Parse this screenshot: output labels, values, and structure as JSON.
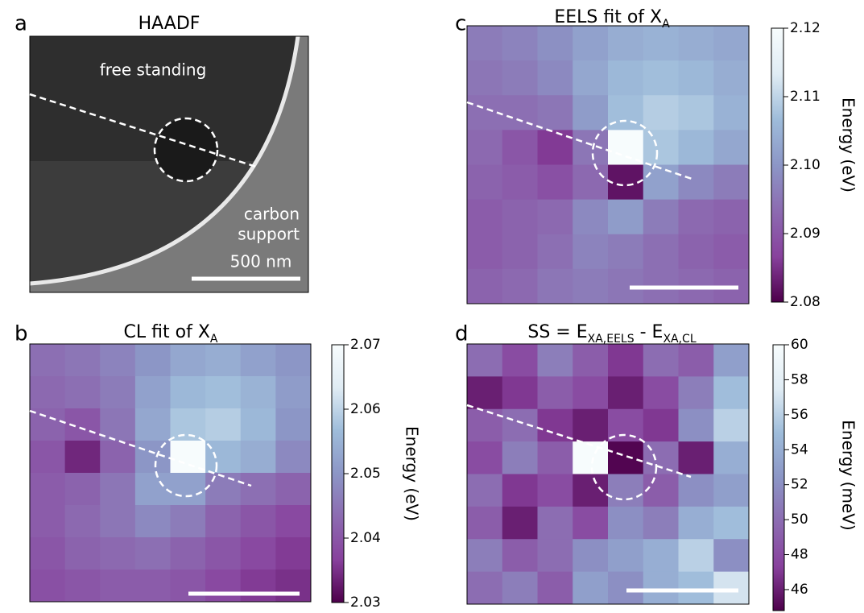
{
  "chart_data": [
    {
      "type": "image",
      "label": "a",
      "title": [
        "HAADF"
      ],
      "annotations": [
        "free standing",
        "carbon",
        "support"
      ],
      "scale_bar": "500 nm"
    },
    {
      "type": "heatmap",
      "label": "b",
      "title": [
        "CL fit of X",
        "A"
      ],
      "zlabel": "Energy (eV)",
      "zlim": [
        2.03,
        2.07
      ],
      "zticks": [
        2.03,
        2.04,
        2.05,
        2.06,
        2.07
      ],
      "colormap": [
        "#4d004b",
        "#88419d",
        "#8c6bb1",
        "#8c96c6",
        "#9ebcda",
        "#e0ecf4",
        "#f7fcfd"
      ],
      "z": [
        [
          2.044,
          2.045,
          2.047,
          2.05,
          2.053,
          2.054,
          2.052,
          2.05
        ],
        [
          2.043,
          2.044,
          2.046,
          2.052,
          2.056,
          2.057,
          2.055,
          2.051
        ],
        [
          2.042,
          2.04,
          2.045,
          2.053,
          2.058,
          2.059,
          2.056,
          2.05
        ],
        [
          2.04,
          2.034,
          2.042,
          2.05,
          2.07,
          2.056,
          2.054,
          2.048
        ],
        [
          2.041,
          2.042,
          2.045,
          2.052,
          2.052,
          2.046,
          2.044,
          2.042
        ],
        [
          2.041,
          2.043,
          2.045,
          2.048,
          2.046,
          2.042,
          2.04,
          2.038
        ],
        [
          2.04,
          2.042,
          2.043,
          2.044,
          2.042,
          2.04,
          2.038,
          2.036
        ],
        [
          2.039,
          2.04,
          2.041,
          2.041,
          2.04,
          2.038,
          2.036,
          2.035
        ]
      ]
    },
    {
      "type": "heatmap",
      "label": "c",
      "title": [
        "EELS fit of X",
        "A"
      ],
      "zlabel": "Energy (eV)",
      "zlim": [
        2.08,
        2.12
      ],
      "zticks": [
        {
          "value": 2.08,
          "label": "2.08"
        },
        2.09,
        {
          "value": 2.1,
          "label": "2.10"
        },
        2.11,
        2.12
      ],
      "colormap": [
        "#4d004b",
        "#88419d",
        "#8c6bb1",
        "#8c96c6",
        "#9ebcda",
        "#e0ecf4",
        "#f7fcfd"
      ],
      "z": [
        [
          2.096,
          2.097,
          2.099,
          2.102,
          2.104,
          2.105,
          2.104,
          2.103
        ],
        [
          2.095,
          2.096,
          2.098,
          2.103,
          2.106,
          2.107,
          2.106,
          2.104
        ],
        [
          2.094,
          2.094,
          2.095,
          2.101,
          2.107,
          2.109,
          2.108,
          2.105
        ],
        [
          2.093,
          2.09,
          2.086,
          2.095,
          2.12,
          2.108,
          2.106,
          2.103
        ],
        [
          2.092,
          2.091,
          2.089,
          2.093,
          2.082,
          2.102,
          2.098,
          2.096
        ],
        [
          2.091,
          2.092,
          2.093,
          2.098,
          2.101,
          2.096,
          2.093,
          2.092
        ],
        [
          2.091,
          2.092,
          2.094,
          2.097,
          2.096,
          2.094,
          2.092,
          2.091
        ],
        [
          2.092,
          2.093,
          2.095,
          2.096,
          2.095,
          2.094,
          2.093,
          2.092
        ]
      ]
    },
    {
      "type": "heatmap",
      "label": "d",
      "title": [
        "SS = E",
        "XA,EELS",
        " - E",
        "XA,CL"
      ],
      "zlabel": "Energy (meV)",
      "zlim": [
        44.8,
        60
      ],
      "zticks": [
        46,
        48,
        50,
        52,
        54,
        56,
        58,
        60
      ],
      "colormap": [
        "#4d004b",
        "#88419d",
        "#8c6bb1",
        "#8c96c6",
        "#9ebcda",
        "#e0ecf4",
        "#f7fcfd"
      ],
      "z": [
        [
          50,
          48,
          51,
          49,
          47,
          50,
          49,
          53
        ],
        [
          46,
          47,
          49,
          48,
          46,
          48,
          51,
          55
        ],
        [
          49,
          50,
          47,
          46,
          48,
          47,
          52,
          56
        ],
        [
          48,
          51,
          49,
          60,
          45,
          50,
          46,
          54
        ],
        [
          50,
          47,
          48,
          46,
          51,
          49,
          52,
          53
        ],
        [
          49,
          46,
          50,
          48,
          52,
          51,
          54,
          55
        ],
        [
          51,
          49,
          50,
          52,
          53,
          54,
          56,
          52
        ],
        [
          50,
          51,
          49,
          53,
          52,
          54,
          55,
          57
        ]
      ]
    }
  ]
}
